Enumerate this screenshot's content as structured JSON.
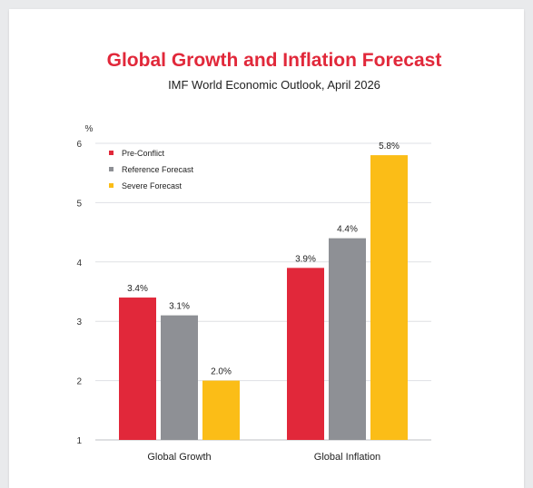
{
  "chart_data": {
    "type": "bar",
    "title": "Global Growth and Inflation Forecast",
    "subtitle": "IMF World Economic Outlook, April 2026",
    "ylabel": "%",
    "xlabel": "",
    "ylim": [
      1,
      6
    ],
    "yticks": [
      1,
      2,
      3,
      4,
      5,
      6
    ],
    "categories": [
      "Global Growth",
      "Global Inflation"
    ],
    "series": [
      {
        "name": "Pre-Conflict",
        "color": "#e1283a",
        "values": [
          3.4,
          3.9
        ],
        "labels": [
          "3.4%",
          "3.9%"
        ]
      },
      {
        "name": "Reference Forecast",
        "color": "#8e9095",
        "values": [
          3.1,
          4.4
        ],
        "labels": [
          "3.1%",
          "4.4%"
        ]
      },
      {
        "name": "Severe Forecast",
        "color": "#fbbd17",
        "values": [
          2.0,
          5.8
        ],
        "labels": [
          "2.0%",
          "5.8%"
        ]
      }
    ],
    "grid": true,
    "legend_position": "top-left"
  }
}
